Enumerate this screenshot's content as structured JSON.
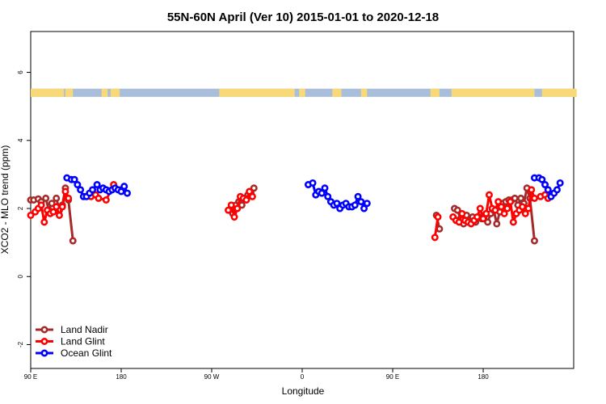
{
  "chart_data": {
    "type": "line",
    "title": "55N-60N April (Ver 10)   2015-01-01 to 2020-12-18",
    "xlabel": "Longitude",
    "ylabel": "XCO2 - MLO trend (ppm)",
    "xlim": [
      90,
      450
    ],
    "ylim": [
      -2.7,
      7.2
    ],
    "x_ticks": [
      {
        "value": 90,
        "label": "90 E"
      },
      {
        "value": 180,
        "label": "180"
      },
      {
        "value": 270,
        "label": "90 W"
      },
      {
        "value": 360,
        "label": "0"
      },
      {
        "value": 450,
        "label": "90 E"
      },
      {
        "value": 540,
        "label": "180"
      }
    ],
    "y_ticks": [
      -2,
      0,
      2,
      4,
      6
    ],
    "x_display_scale": 0.6667,
    "land_mask_band": {
      "y_bottom": 5.28,
      "y_top": 5.52,
      "ocean_color": "#a8bedb",
      "land_color": "#f9d977"
    },
    "legend_position": "bottom-left",
    "series": [
      {
        "name": "Land Nadir",
        "color": "#a52a2a",
        "points": [
          [
            90,
            2.25
          ],
          [
            92,
            2.25
          ],
          [
            95,
            2.28
          ],
          [
            97,
            2.2
          ],
          [
            100,
            2.3
          ],
          [
            102,
            1.95
          ],
          [
            104,
            2.15
          ],
          [
            107,
            2.3
          ],
          [
            109,
            1.95
          ],
          [
            111,
            2.1
          ],
          [
            113,
            2.6
          ],
          [
            115,
            2.25
          ],
          [
            118,
            1.05
          ],
          [
            224,
            1.85
          ],
          [
            226,
            2.1
          ],
          [
            228,
            2.2
          ],
          [
            230,
            2.1
          ],
          [
            232,
            2.3
          ],
          [
            234,
            2.4
          ],
          [
            236,
            2.45
          ],
          [
            238,
            2.6
          ],
          [
            359,
            1.8
          ],
          [
            361,
            1.4
          ],
          [
            371,
            2.0
          ],
          [
            373,
            1.95
          ],
          [
            375,
            1.7
          ],
          [
            377,
            1.55
          ],
          [
            379,
            1.8
          ],
          [
            381,
            1.65
          ],
          [
            383,
            1.75
          ],
          [
            385,
            1.6
          ],
          [
            387,
            1.75
          ],
          [
            389,
            1.7
          ],
          [
            391,
            1.8
          ],
          [
            393,
            1.6
          ],
          [
            395,
            1.85
          ],
          [
            397,
            1.95
          ],
          [
            399,
            1.55
          ],
          [
            401,
            1.9
          ],
          [
            403,
            2.15
          ],
          [
            405,
            2.2
          ],
          [
            407,
            2.25
          ],
          [
            409,
            2.25
          ],
          [
            411,
            2.3
          ],
          [
            413,
            2.1
          ],
          [
            415,
            2.3
          ],
          [
            417,
            2.15
          ],
          [
            419,
            2.6
          ],
          [
            421,
            2.3
          ],
          [
            424,
            1.05
          ]
        ]
      },
      {
        "name": "Land Glint",
        "color": "#ff0000",
        "points": [
          [
            90,
            1.8
          ],
          [
            93,
            1.9
          ],
          [
            95,
            2.0
          ],
          [
            97,
            2.1
          ],
          [
            99,
            1.6
          ],
          [
            101,
            1.95
          ],
          [
            103,
            1.85
          ],
          [
            105,
            1.9
          ],
          [
            107,
            2.05
          ],
          [
            109,
            1.8
          ],
          [
            111,
            2.05
          ],
          [
            113,
            2.5
          ],
          [
            115,
            2.3
          ],
          [
            130,
            2.35
          ],
          [
            133,
            2.4
          ],
          [
            135,
            2.3
          ],
          [
            140,
            2.25
          ],
          [
            145,
            2.7
          ],
          [
            150,
            2.55
          ],
          [
            221,
            1.95
          ],
          [
            223,
            2.1
          ],
          [
            225,
            1.75
          ],
          [
            227,
            2.0
          ],
          [
            229,
            2.35
          ],
          [
            231,
            2.3
          ],
          [
            233,
            2.25
          ],
          [
            235,
            2.5
          ],
          [
            237,
            2.35
          ],
          [
            358,
            1.15
          ],
          [
            360,
            1.75
          ],
          [
            370,
            1.75
          ],
          [
            372,
            1.65
          ],
          [
            374,
            1.6
          ],
          [
            376,
            1.85
          ],
          [
            378,
            1.65
          ],
          [
            380,
            1.6
          ],
          [
            382,
            1.55
          ],
          [
            384,
            1.65
          ],
          [
            386,
            1.75
          ],
          [
            388,
            2.0
          ],
          [
            390,
            1.7
          ],
          [
            392,
            1.85
          ],
          [
            394,
            2.4
          ],
          [
            396,
            2.0
          ],
          [
            398,
            1.95
          ],
          [
            400,
            2.2
          ],
          [
            402,
            2.05
          ],
          [
            404,
            1.85
          ],
          [
            406,
            2.0
          ],
          [
            408,
            2.2
          ],
          [
            410,
            1.6
          ],
          [
            412,
            1.85
          ],
          [
            414,
            1.95
          ],
          [
            416,
            2.05
          ],
          [
            418,
            1.85
          ],
          [
            420,
            2.0
          ],
          [
            422,
            2.55
          ],
          [
            424,
            2.3
          ],
          [
            428,
            2.35
          ],
          [
            431,
            2.4
          ],
          [
            433,
            2.3
          ]
        ]
      },
      {
        "name": "Ocean Glint",
        "color": "#0000ff",
        "points": [
          [
            114,
            2.9
          ],
          [
            117,
            2.85
          ],
          [
            119,
            2.85
          ],
          [
            121,
            2.7
          ],
          [
            123,
            2.55
          ],
          [
            125,
            2.35
          ],
          [
            127,
            2.35
          ],
          [
            129,
            2.45
          ],
          [
            131,
            2.55
          ],
          [
            134,
            2.7
          ],
          [
            136,
            2.55
          ],
          [
            138,
            2.6
          ],
          [
            140,
            2.55
          ],
          [
            142,
            2.5
          ],
          [
            144,
            2.55
          ],
          [
            146,
            2.6
          ],
          [
            148,
            2.55
          ],
          [
            150,
            2.5
          ],
          [
            152,
            2.65
          ],
          [
            154,
            2.45
          ],
          [
            274,
            2.7
          ],
          [
            277,
            2.75
          ],
          [
            279,
            2.4
          ],
          [
            281,
            2.5
          ],
          [
            283,
            2.45
          ],
          [
            285,
            2.6
          ],
          [
            287,
            2.35
          ],
          [
            289,
            2.2
          ],
          [
            291,
            2.1
          ],
          [
            293,
            2.15
          ],
          [
            295,
            2.0
          ],
          [
            297,
            2.1
          ],
          [
            299,
            2.15
          ],
          [
            301,
            2.05
          ],
          [
            303,
            2.05
          ],
          [
            305,
            2.1
          ],
          [
            307,
            2.35
          ],
          [
            309,
            2.2
          ],
          [
            311,
            2.0
          ],
          [
            313,
            2.15
          ],
          [
            424,
            2.9
          ],
          [
            427,
            2.9
          ],
          [
            429,
            2.85
          ],
          [
            431,
            2.7
          ],
          [
            433,
            2.55
          ],
          [
            435,
            2.35
          ],
          [
            437,
            2.45
          ],
          [
            439,
            2.55
          ],
          [
            441,
            2.75
          ]
        ]
      }
    ]
  }
}
